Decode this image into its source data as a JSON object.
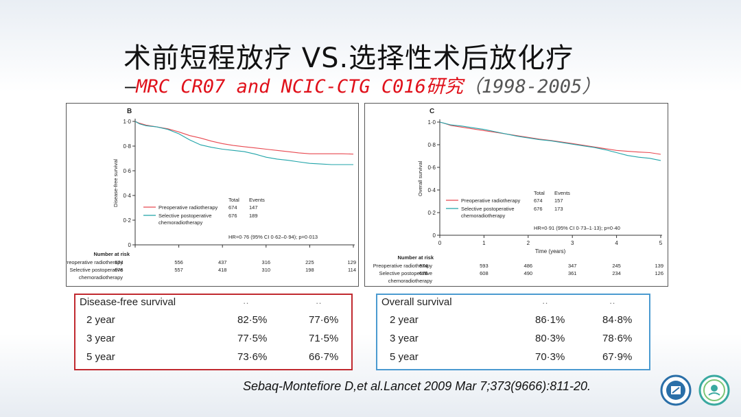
{
  "slide": {
    "title": "术前短程放疗 VS.选择性术后放化疗",
    "subtitle_dash": "—",
    "subtitle_main": "MRC CR07 and NCIC-CTG C016研究",
    "subtitle_years": "（1998-2005）",
    "citation": "Sebaq-Montefiore D,et al.Lancet  2009 Mar 7;373(9666):811-20.",
    "colors": {
      "preop": "#e8474f",
      "postop": "#1fa3a8",
      "dfs_border": "#c0282e",
      "os_border": "#4a9ad0"
    }
  },
  "chart_data": [
    {
      "type": "line",
      "panel_label": "B",
      "ylabel": "Disease-free survival",
      "xlabel": "",
      "ylim": [
        0,
        1.0
      ],
      "xlim": [
        0,
        5
      ],
      "yticks": [
        "0",
        "0·2",
        "0·4",
        "0·6",
        "0·8",
        "1·0"
      ],
      "xticks": [],
      "series": [
        {
          "name": "Preoperative radiotherapy",
          "x": [
            0,
            0.1,
            0.25,
            0.5,
            0.75,
            1.0,
            1.25,
            1.5,
            1.75,
            2.0,
            2.25,
            2.5,
            2.75,
            3.0,
            3.25,
            3.5,
            3.75,
            4.0,
            4.25,
            4.5,
            4.75,
            5.0
          ],
          "y": [
            1.0,
            0.985,
            0.97,
            0.955,
            0.94,
            0.915,
            0.885,
            0.865,
            0.84,
            0.82,
            0.805,
            0.795,
            0.785,
            0.775,
            0.765,
            0.755,
            0.745,
            0.738,
            0.738,
            0.738,
            0.738,
            0.735
          ]
        },
        {
          "name": "Selective postoperative chemoradiotherapy",
          "x": [
            0,
            0.1,
            0.25,
            0.5,
            0.75,
            1.0,
            1.25,
            1.5,
            1.75,
            2.0,
            2.25,
            2.5,
            2.75,
            3.0,
            3.25,
            3.5,
            3.75,
            4.0,
            4.25,
            4.5,
            4.75,
            5.0
          ],
          "y": [
            1.0,
            0.98,
            0.965,
            0.955,
            0.935,
            0.9,
            0.85,
            0.81,
            0.79,
            0.775,
            0.765,
            0.755,
            0.735,
            0.71,
            0.695,
            0.685,
            0.672,
            0.66,
            0.655,
            0.65,
            0.65,
            0.65
          ]
        }
      ],
      "legend": {
        "header_total": "Total",
        "header_events": "Events",
        "rows": [
          {
            "label": "Preoperative radiotherapy",
            "total": "674",
            "events": "147"
          },
          {
            "label": "Selective postoperative",
            "label2": "chemoradiotherapy",
            "total": "676",
            "events": "189"
          }
        ]
      },
      "hr_text": "HR=0·76 (95% CI 0·62–0·94); p=0·013",
      "risk_table": {
        "title": "Number at risk",
        "rows": [
          {
            "label": "Preoperative radiotherapy",
            "values": [
              "674",
              "556",
              "437",
              "316",
              "225",
              "129"
            ]
          },
          {
            "label": "Selective postoperative",
            "label2": "chemoradiotherapy",
            "values": [
              "676",
              "557",
              "418",
              "310",
              "198",
              "114"
            ]
          }
        ]
      }
    },
    {
      "type": "line",
      "panel_label": "C",
      "ylabel": "Overall survival",
      "xlabel": "Time (years)",
      "ylim": [
        0,
        1.0
      ],
      "xlim": [
        0,
        5
      ],
      "yticks": [
        "0",
        "0·2",
        "0·4",
        "0·6",
        "0·8",
        "1·0"
      ],
      "xticks": [
        "0",
        "1",
        "2",
        "3",
        "4",
        "5"
      ],
      "series": [
        {
          "name": "Preoperative radiotherapy",
          "x": [
            0,
            0.1,
            0.25,
            0.5,
            0.75,
            1.0,
            1.25,
            1.5,
            1.75,
            2.0,
            2.25,
            2.5,
            2.75,
            3.0,
            3.25,
            3.5,
            3.75,
            4.0,
            4.25,
            4.5,
            4.75,
            5.0
          ],
          "y": [
            1.0,
            0.99,
            0.97,
            0.955,
            0.94,
            0.925,
            0.91,
            0.895,
            0.88,
            0.865,
            0.85,
            0.838,
            0.825,
            0.81,
            0.795,
            0.78,
            0.765,
            0.75,
            0.742,
            0.735,
            0.73,
            0.715
          ]
        },
        {
          "name": "Selective postoperative chemoradiotherapy",
          "x": [
            0,
            0.1,
            0.25,
            0.5,
            0.75,
            1.0,
            1.25,
            1.5,
            1.75,
            2.0,
            2.25,
            2.5,
            2.75,
            3.0,
            3.25,
            3.5,
            3.75,
            4.0,
            4.25,
            4.5,
            4.75,
            5.0
          ],
          "y": [
            1.0,
            0.99,
            0.975,
            0.965,
            0.95,
            0.935,
            0.915,
            0.895,
            0.875,
            0.86,
            0.845,
            0.835,
            0.82,
            0.805,
            0.79,
            0.775,
            0.755,
            0.73,
            0.705,
            0.69,
            0.68,
            0.66
          ]
        }
      ],
      "legend": {
        "header_total": "Total",
        "header_events": "Events",
        "rows": [
          {
            "label": "Preoperative radiotherapy",
            "total": "674",
            "events": "157"
          },
          {
            "label": "Selective postoperative",
            "label2": "chemoradiotherapy",
            "total": "676",
            "events": "173"
          }
        ]
      },
      "hr_text": "HR=0·91 (95% CI 0·73–1·13); p=0·40",
      "risk_table": {
        "title": "Number at risk",
        "rows": [
          {
            "label": "Preoperative radiotherapy",
            "values": [
              "674",
              "593",
              "486",
              "347",
              "245",
              "139"
            ]
          },
          {
            "label": "Selective postoperative",
            "label2": "chemoradiotherapy",
            "values": [
              "676",
              "608",
              "490",
              "361",
              "234",
              "126"
            ]
          }
        ]
      }
    }
  ],
  "tables": {
    "dfs": {
      "header": "Disease-free survival",
      "col_marks": [
        "··",
        "··"
      ],
      "rows": [
        {
          "label": "2 year",
          "v1": "82·5%",
          "v2": "77·6%"
        },
        {
          "label": "3 year",
          "v1": "77·5%",
          "v2": "71·5%"
        },
        {
          "label": "5 year",
          "v1": "73·6%",
          "v2": "66·7%"
        }
      ]
    },
    "os": {
      "header": "Overall survival",
      "col_marks": [
        "··",
        "··"
      ],
      "rows": [
        {
          "label": "2 year",
          "v1": "86·1%",
          "v2": "84·8%"
        },
        {
          "label": "3 year",
          "v1": "80·3%",
          "v2": "78·6%"
        },
        {
          "label": "5 year",
          "v1": "70·3%",
          "v2": "67·9%"
        }
      ]
    }
  }
}
